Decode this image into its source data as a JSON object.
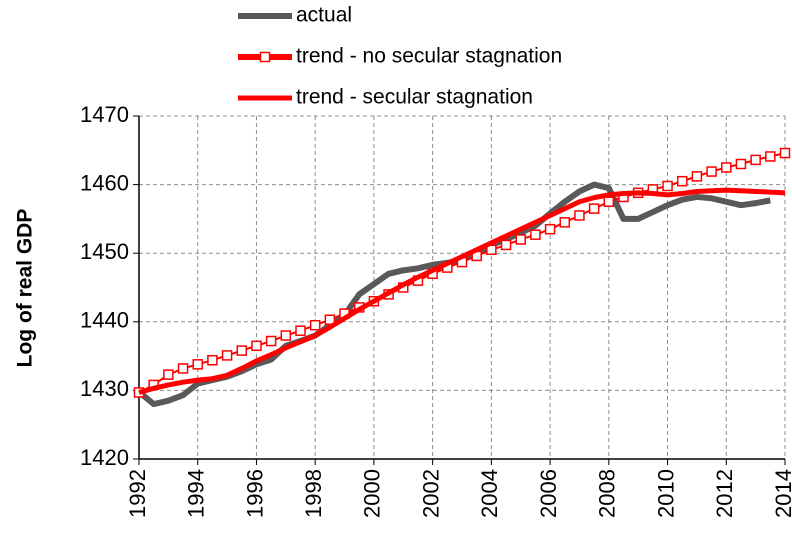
{
  "chart_data": {
    "type": "line",
    "ylabel": "Log of real GDP",
    "x": [
      1992,
      1992.5,
      1993,
      1993.5,
      1994,
      1994.5,
      1995,
      1995.5,
      1996,
      1996.5,
      1997,
      1997.5,
      1998,
      1998.5,
      1999,
      1999.5,
      2000,
      2000.5,
      2001,
      2001.5,
      2002,
      2002.5,
      2003,
      2003.5,
      2004,
      2004.5,
      2005,
      2005.5,
      2006,
      2006.5,
      2007,
      2007.5,
      2008,
      2008.5,
      2009,
      2009.5,
      2010,
      2010.5,
      2011,
      2011.5,
      2012,
      2012.5,
      2013,
      2013.5,
      2014
    ],
    "series": [
      {
        "name": "actual",
        "color": "#595959",
        "width": 6,
        "marker": "none",
        "values": [
          1429.8,
          1428,
          1428.5,
          1429.3,
          1431,
          1431.5,
          1432,
          1432.8,
          1433.8,
          1434.5,
          1436.5,
          1437.2,
          1438,
          1439.5,
          1441,
          1444,
          1445.5,
          1447,
          1447.5,
          1447.8,
          1448.3,
          1448.6,
          1449,
          1450,
          1451.2,
          1452,
          1453,
          1454,
          1455.8,
          1457.5,
          1459,
          1460,
          1459.5,
          1455,
          1455,
          1456,
          1457,
          1457.8,
          1458.2,
          1458,
          1457.5,
          1457,
          1457.3,
          1457.7,
          null
        ]
      },
      {
        "name": "trend - no secular stagnation",
        "color": "#ff0000",
        "width": 2,
        "marker": "square",
        "values": [
          1429.7,
          1430.8,
          1432.3,
          1433.2,
          1433.8,
          1434.4,
          1435.1,
          1435.8,
          1436.5,
          1437.2,
          1438,
          1438.7,
          1439.5,
          1440.3,
          1441.2,
          1442.1,
          1443,
          1444,
          1445,
          1446,
          1447,
          1447.9,
          1448.7,
          1449.6,
          1450.5,
          1451.2,
          1452,
          1452.7,
          1453.5,
          1454.5,
          1455.5,
          1456.5,
          1457.5,
          1458.2,
          1458.8,
          1459.3,
          1459.8,
          1460.5,
          1461.2,
          1461.9,
          1462.5,
          1463,
          1463.6,
          1464.1,
          1464.6
        ]
      },
      {
        "name": "trend - secular stagnation",
        "color": "#ff0000",
        "width": 5,
        "marker": "none",
        "values": [
          1429.7,
          1430.3,
          1430.8,
          1431.2,
          1431.5,
          1431.7,
          1432.2,
          1433.2,
          1434.3,
          1435.2,
          1436.2,
          1437.1,
          1438,
          1439.2,
          1440.5,
          1441.8,
          1443,
          1444.2,
          1445.4,
          1446.5,
          1447.5,
          1448.5,
          1449.5,
          1450.5,
          1451.5,
          1452.5,
          1453.5,
          1454.5,
          1455.5,
          1456.5,
          1457.5,
          1458.1,
          1458.5,
          1458.7,
          1458.8,
          1458.7,
          1458.5,
          1458.7,
          1459,
          1459.1,
          1459.2,
          1459.1,
          1459,
          1458.9,
          1458.8
        ]
      }
    ],
    "xlim": [
      1992,
      2014
    ],
    "xticks": [
      1992,
      1994,
      1996,
      1998,
      2000,
      2002,
      2004,
      2006,
      2008,
      2010,
      2012,
      2014
    ],
    "ylim": [
      1420,
      1470
    ],
    "yticks": [
      1420,
      1430,
      1440,
      1450,
      1460,
      1470
    ],
    "grid": true,
    "legend": "top"
  }
}
